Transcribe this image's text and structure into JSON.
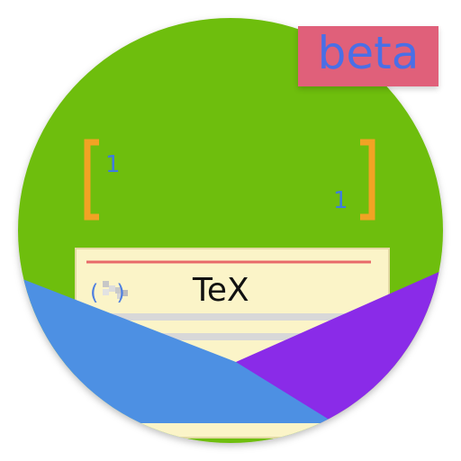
{
  "badge": {
    "label": "beta"
  },
  "matrix": {
    "top_left": "1",
    "bottom_right": "1"
  },
  "card": {
    "paren": "(   )",
    "label": "TeX"
  },
  "colors": {
    "circle_green": "#6ebe0a",
    "bracket_orange": "#f2a324",
    "card_cream": "#fbf4c8",
    "card_rule": "#e86a6a",
    "pocket_blue": "#4d90e3",
    "pocket_purple": "#8a2be8",
    "badge_bg": "#e0607a",
    "badge_text": "#4a6fe6",
    "number_blue": "#3f7be0"
  },
  "icons": [
    "bracket-left-icon",
    "bracket-right-icon",
    "blank-placeholder-icon"
  ]
}
